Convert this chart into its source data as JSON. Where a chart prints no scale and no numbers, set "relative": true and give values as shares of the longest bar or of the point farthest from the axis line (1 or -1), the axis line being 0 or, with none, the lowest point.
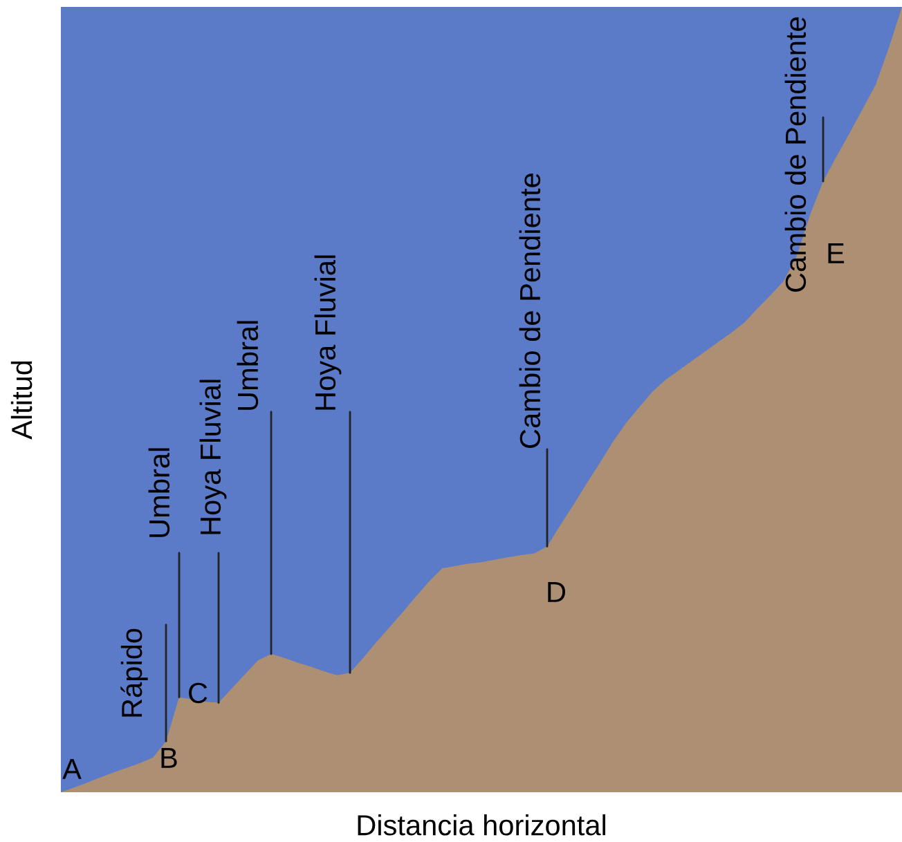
{
  "chart_data": {
    "type": "area",
    "relative": true,
    "xlabel": "Distancia horizontal",
    "ylabel": "Altitud",
    "categories": [
      null,
      null,
      null,
      null,
      null,
      null,
      null,
      null,
      null,
      null,
      null,
      null,
      null,
      null,
      null,
      null,
      null,
      null,
      null,
      null,
      null,
      null,
      null,
      null,
      null,
      null,
      null,
      null,
      null,
      null,
      null,
      null,
      null,
      null,
      null,
      null,
      null,
      null,
      null,
      null,
      null,
      null,
      null,
      null,
      null,
      null,
      null,
      null,
      null,
      null,
      null,
      null,
      null,
      null,
      null,
      null,
      null,
      null,
      null,
      null,
      null,
      null,
      null,
      null,
      null
    ],
    "series": [
      {
        "color": "#ad9073",
        "values": [
          0,
          0.006,
          0.012,
          0.019,
          0.025,
          0.031,
          0.037,
          0.044,
          0.065,
          0.121,
          0.118,
          0.115,
          0.114,
          0.132,
          0.15,
          0.168,
          0.176,
          0.171,
          0.165,
          0.16,
          0.154,
          0.149,
          0.152,
          0.171,
          0.191,
          0.21,
          0.229,
          0.249,
          0.268,
          0.285,
          0.288,
          0.291,
          0.293,
          0.296,
          0.299,
          0.302,
          0.304,
          0.313,
          0.34,
          0.366,
          0.393,
          0.419,
          0.446,
          0.47,
          0.49,
          0.51,
          0.525,
          0.537,
          0.549,
          0.561,
          0.573,
          0.585,
          0.598,
          0.616,
          0.633,
          0.651,
          0.683,
          0.735,
          0.778,
          0.809,
          0.839,
          0.87,
          0.901,
          0.948,
          1
        ]
      }
    ],
    "annotations": [
      "A",
      "B",
      "C",
      "D",
      "E",
      "Rápido",
      "Umbral",
      "Hoya Fluvial",
      "Umbral",
      "Hoya Fluvial",
      "Cambio de Pendiente",
      "Cambio de Pendiente"
    ]
  }
}
